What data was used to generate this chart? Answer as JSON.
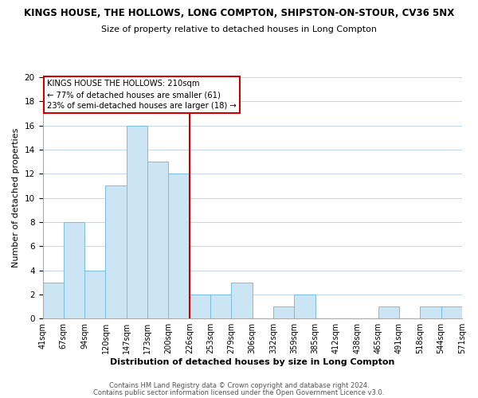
{
  "title": "KINGS HOUSE, THE HOLLOWS, LONG COMPTON, SHIPSTON-ON-STOUR, CV36 5NX",
  "subtitle": "Size of property relative to detached houses in Long Compton",
  "xlabel": "Distribution of detached houses by size in Long Compton",
  "ylabel": "Number of detached properties",
  "bar_values": [
    3,
    8,
    4,
    11,
    16,
    13,
    12,
    2,
    2,
    3,
    0,
    1,
    2,
    0,
    0,
    0,
    1,
    0,
    1,
    1
  ],
  "x_tick_labels": [
    "41sqm",
    "67sqm",
    "94sqm",
    "120sqm",
    "147sqm",
    "173sqm",
    "200sqm",
    "226sqm",
    "253sqm",
    "279sqm",
    "306sqm",
    "332sqm",
    "359sqm",
    "385sqm",
    "412sqm",
    "438sqm",
    "465sqm",
    "491sqm",
    "518sqm",
    "544sqm",
    "571sqm"
  ],
  "bar_color": "#cce5f5",
  "bar_edge_color": "#7bbde0",
  "grid_color": "#c8d8ea",
  "vline_color": "#cc0000",
  "ylim": [
    0,
    20
  ],
  "yticks": [
    0,
    2,
    4,
    6,
    8,
    10,
    12,
    14,
    16,
    18,
    20
  ],
  "annotation_title": "KINGS HOUSE THE HOLLOWS: 210sqm",
  "annotation_line1": "← 77% of detached houses are smaller (61)",
  "annotation_line2": "23% of semi-detached houses are larger (18) →",
  "footer_line1": "Contains HM Land Registry data © Crown copyright and database right 2024.",
  "footer_line2": "Contains public sector information licensed under the Open Government Licence v3.0."
}
